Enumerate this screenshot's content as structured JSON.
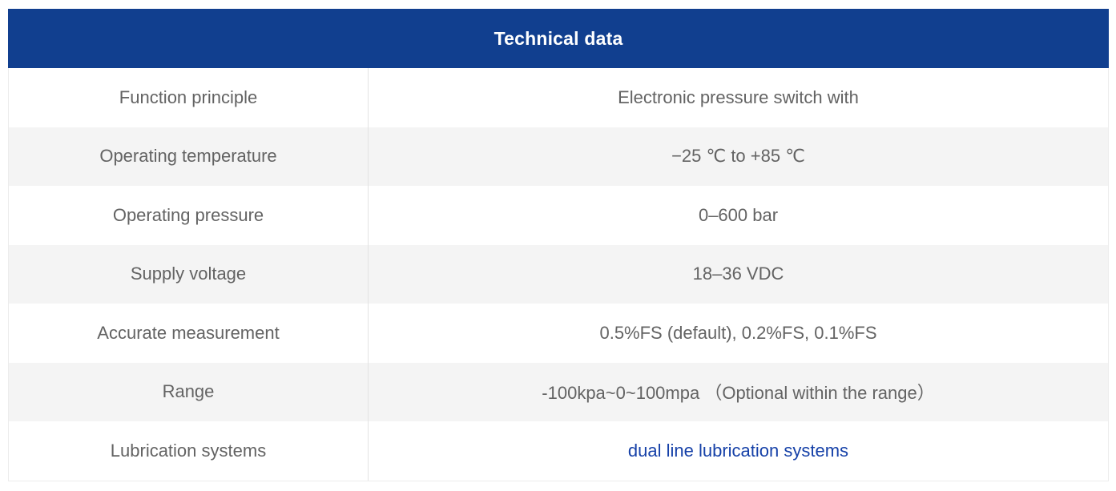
{
  "table": {
    "title": "Technical data",
    "rows": [
      {
        "label": "Function principle",
        "value": "Electronic pressure switch with"
      },
      {
        "label": "Operating temperature",
        "value": "−25 ℃ to +85 ℃"
      },
      {
        "label": "Operating pressure",
        "value": "0–600 bar"
      },
      {
        "label": "Supply voltage",
        "value": "18–36 VDC"
      },
      {
        "label": "Accurate measurement",
        "value": "0.5%FS (default), 0.2%FS, 0.1%FS"
      },
      {
        "label": "Range",
        "value": "-100kpa~0~100mpa （Optional within the range）"
      },
      {
        "label": "Lubrication systems",
        "value": "dual line lubrication systems"
      }
    ],
    "colors": {
      "header_bg": "#113f8f",
      "header_text": "#ffffff",
      "row_alt_bg": "#f4f4f4",
      "body_text": "#636363",
      "link": "#1641a8",
      "border": "#ececec"
    }
  }
}
